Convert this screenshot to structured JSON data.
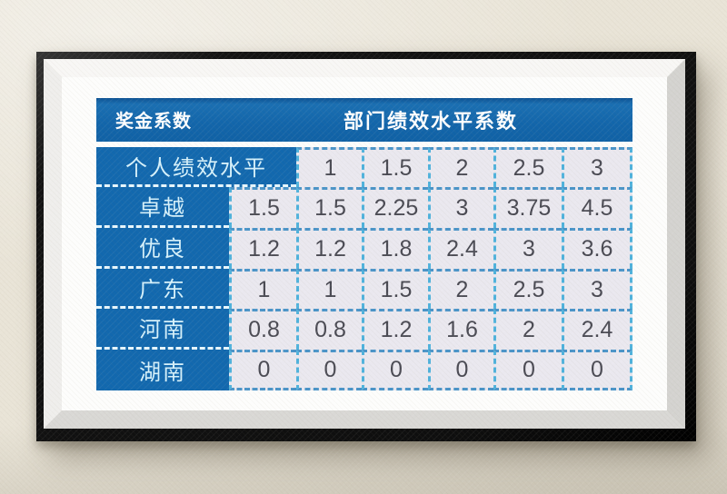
{
  "scene": {
    "description_labels": {
      "wall": "textured beige wall",
      "frame": "black picture frame with white mat"
    },
    "colors": {
      "wall": "#e9e4d7",
      "frame": "#111111",
      "mat": "#fdfdfc",
      "header_blue": "#1265aa",
      "label_blue": "#1268ae",
      "value_cell_bg": "#eae8ef",
      "value_text": "#4a4a53",
      "label_text": "#d6f1fb",
      "dash_horizontal": "#4a94c8",
      "dash_vertical": "#4fb2dc",
      "dash_on_blue": "#e8f7fd"
    }
  },
  "chart_data": {
    "type": "table",
    "corner_label": "奖金系数",
    "title": "部门绩效水平系数",
    "subheader": {
      "label": "个人绩效水平",
      "values": [
        "1",
        "1.5",
        "2",
        "2.5",
        "3"
      ]
    },
    "rows": [
      {
        "label": "卓越",
        "values": [
          "1.5",
          "1.5",
          "2.25",
          "3",
          "3.75",
          "4.5"
        ]
      },
      {
        "label": "优良",
        "values": [
          "1.2",
          "1.2",
          "1.8",
          "2.4",
          "3",
          "3.6"
        ]
      },
      {
        "label": "广东",
        "values": [
          "1",
          "1",
          "1.5",
          "2",
          "2.5",
          "3"
        ]
      },
      {
        "label": "河南",
        "values": [
          "0.8",
          "0.8",
          "1.2",
          "1.6",
          "2",
          "2.4"
        ]
      },
      {
        "label": "湖南",
        "values": [
          "0",
          "0",
          "0",
          "0",
          "0",
          "0"
        ]
      }
    ]
  }
}
